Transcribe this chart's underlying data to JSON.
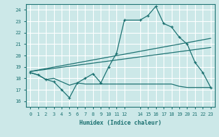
{
  "xlabel": "Humidex (Indice chaleur)",
  "bg_color": "#cce8e8",
  "grid_color": "#ffffff",
  "line_color": "#1a7070",
  "xlim": [
    -0.5,
    23.5
  ],
  "ylim": [
    15.5,
    24.5
  ],
  "xticks": [
    0,
    1,
    2,
    3,
    4,
    5,
    6,
    7,
    8,
    9,
    10,
    11,
    12,
    14,
    15,
    16,
    17,
    18,
    19,
    20,
    21,
    22,
    23
  ],
  "yticks": [
    16,
    17,
    18,
    19,
    20,
    21,
    22,
    23,
    24
  ],
  "line1_x": [
    0,
    1,
    2,
    3,
    4,
    5,
    6,
    7,
    8,
    9,
    10,
    11,
    12,
    14,
    15,
    16,
    17,
    18,
    19,
    20,
    21,
    22,
    23
  ],
  "line1_y": [
    18.5,
    18.3,
    17.9,
    17.7,
    17.0,
    16.3,
    17.6,
    18.0,
    18.4,
    17.6,
    19.0,
    20.2,
    23.1,
    23.1,
    23.5,
    24.3,
    22.8,
    22.5,
    21.6,
    21.0,
    19.4,
    18.5,
    17.2
  ],
  "line2_x": [
    0,
    1,
    2,
    3,
    4,
    5,
    6,
    7,
    8,
    9,
    10,
    11,
    12,
    13,
    14,
    15,
    16,
    17,
    18,
    19,
    20,
    21,
    22,
    23
  ],
  "line2_y": [
    18.5,
    18.3,
    17.9,
    18.0,
    17.7,
    17.4,
    17.6,
    17.5,
    17.5,
    17.5,
    17.5,
    17.5,
    17.5,
    17.5,
    17.5,
    17.5,
    17.5,
    17.5,
    17.5,
    17.3,
    17.2,
    17.2,
    17.2,
    17.2
  ],
  "line3_x": [
    0,
    23
  ],
  "line3_y": [
    18.6,
    21.5
  ],
  "line4_x": [
    0,
    23
  ],
  "line4_y": [
    18.6,
    20.7
  ]
}
